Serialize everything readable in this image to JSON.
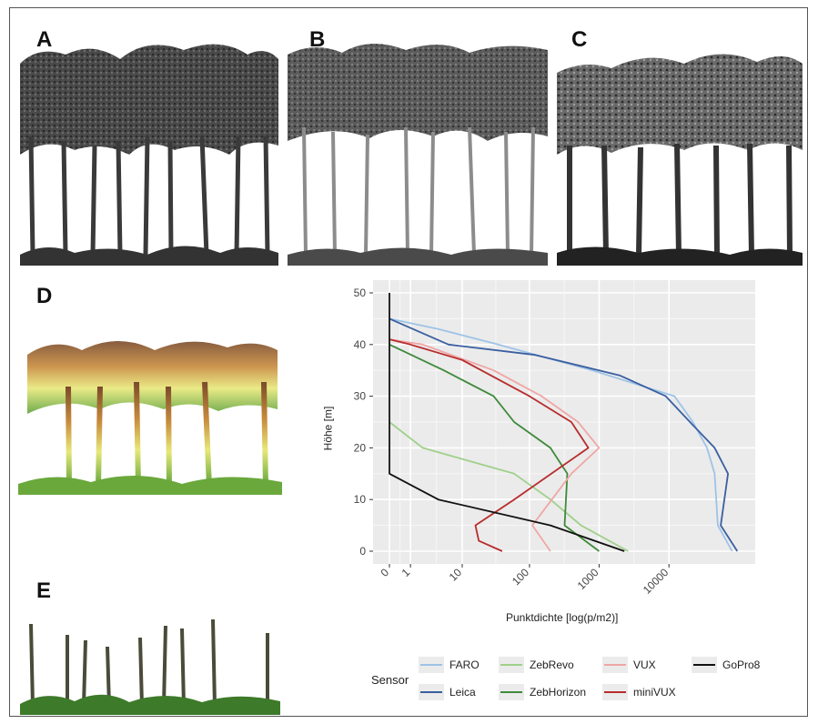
{
  "panels": {
    "a": "A",
    "b": "B",
    "c": "C",
    "d": "D",
    "e": "E"
  },
  "chart_data": {
    "type": "line",
    "xlabel": "Punktdichte [log(p/m2)]",
    "ylabel": "Höhe [m]",
    "x_scale": "log1p",
    "x_ticks": [
      0,
      1,
      10,
      100,
      1000,
      10000
    ],
    "x_tick_labels": [
      "0",
      "1",
      "10",
      "100",
      "1000",
      "10000"
    ],
    "y_ticks": [
      0,
      10,
      20,
      30,
      40,
      50
    ],
    "y_tick_labels": [
      "0",
      "10",
      "20",
      "30",
      "40",
      "50"
    ],
    "ylim": [
      0,
      50
    ],
    "grid": true,
    "legend_title": "Sensor",
    "legend_position": "bottom",
    "series": [
      {
        "name": "FARO",
        "color": "#9ec3e6",
        "points": [
          [
            80000,
            0
          ],
          [
            50000,
            5
          ],
          [
            45000,
            15
          ],
          [
            35000,
            20
          ],
          [
            22000,
            25
          ],
          [
            12000,
            30
          ],
          [
            800,
            35
          ],
          [
            35,
            40
          ],
          [
            4,
            43
          ],
          [
            0,
            45
          ]
        ]
      },
      {
        "name": "Leica",
        "color": "#3a5fa0",
        "points": [
          [
            95000,
            0
          ],
          [
            55000,
            5
          ],
          [
            70000,
            15
          ],
          [
            45000,
            20
          ],
          [
            20000,
            25
          ],
          [
            9000,
            30
          ],
          [
            2000,
            34
          ],
          [
            120,
            38
          ],
          [
            6,
            40
          ],
          [
            0,
            45
          ]
        ]
      },
      {
        "name": "ZebRevo",
        "color": "#9fd08a",
        "points": [
          [
            2600,
            0
          ],
          [
            550,
            5
          ],
          [
            200,
            10
          ],
          [
            60,
            15
          ],
          [
            2,
            20
          ],
          [
            0,
            25
          ]
        ]
      },
      {
        "name": "ZebHorizon",
        "color": "#3e8a3a",
        "points": [
          [
            1000,
            0
          ],
          [
            320,
            5
          ],
          [
            350,
            15
          ],
          [
            200,
            20
          ],
          [
            60,
            25
          ],
          [
            30,
            30
          ],
          [
            5,
            35
          ],
          [
            0,
            40
          ]
        ]
      },
      {
        "name": "VUX",
        "color": "#f0a6a6",
        "points": [
          [
            200,
            0
          ],
          [
            110,
            5
          ],
          [
            400,
            15
          ],
          [
            1000,
            20
          ],
          [
            500,
            25
          ],
          [
            150,
            30
          ],
          [
            30,
            35
          ],
          [
            2,
            40
          ],
          [
            0,
            41
          ]
        ]
      },
      {
        "name": "miniVUX",
        "color": "#b82c2c",
        "points": [
          [
            40,
            0
          ],
          [
            18,
            2
          ],
          [
            16,
            5
          ],
          [
            60,
            10
          ],
          [
            700,
            20
          ],
          [
            400,
            25
          ],
          [
            100,
            30
          ],
          [
            10,
            37
          ],
          [
            1,
            40
          ],
          [
            0,
            41
          ]
        ]
      },
      {
        "name": "GoPro8",
        "color": "#111111",
        "points": [
          [
            2300,
            0
          ],
          [
            200,
            5
          ],
          [
            4,
            10
          ],
          [
            0,
            15
          ],
          [
            0,
            50
          ]
        ]
      }
    ]
  }
}
